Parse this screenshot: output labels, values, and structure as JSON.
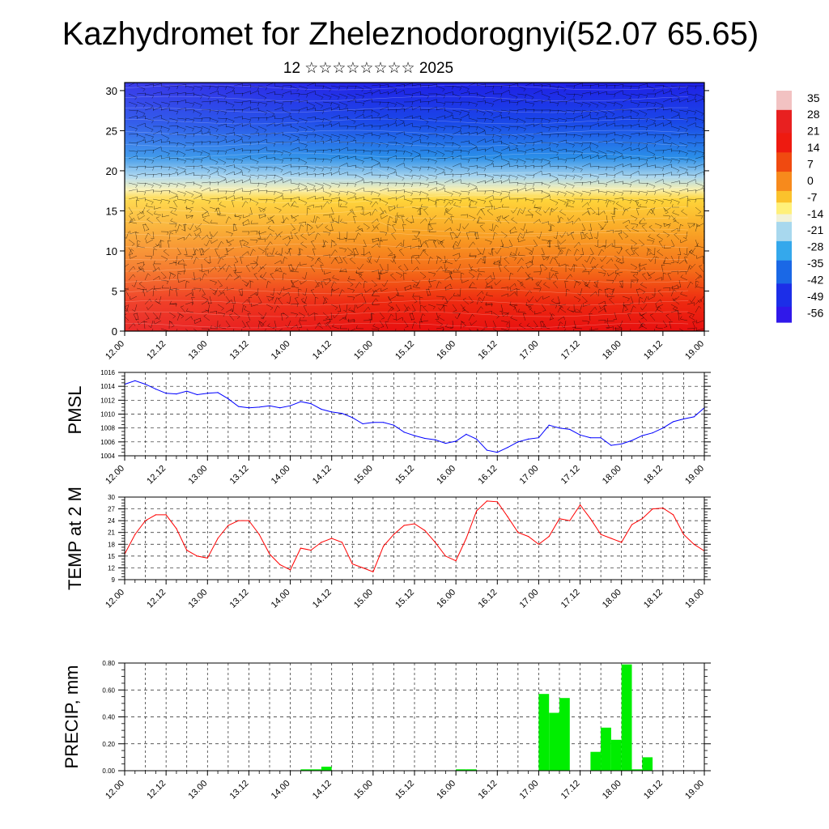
{
  "title": "Kazhydromet for Zheleznodorognyi(52.07 65.65)",
  "subtitle": "12 ☆☆☆☆☆☆☆☆ 2025",
  "time_labels": [
    "12.00",
    "12.12",
    "13.00",
    "13.12",
    "14.00",
    "14.12",
    "15.00",
    "15.12",
    "16.00",
    "16.12",
    "17.00",
    "17.12",
    "18.00",
    "18.12",
    "19.00"
  ],
  "chart_data": [
    {
      "type": "heatmap",
      "name": "cross-section",
      "ylim": [
        0,
        31
      ],
      "yticks": [
        0,
        5,
        10,
        15,
        20,
        25,
        30
      ],
      "colorbar": {
        "labels": [
          "35",
          "28",
          "21",
          "14",
          "7",
          "0",
          "-7",
          "-14",
          "-21",
          "-28",
          "-35",
          "-42",
          "-49",
          "-56"
        ],
        "stops": [
          {
            "v": 38,
            "color": "#f2c2c2"
          },
          {
            "v": 30,
            "color": "#e82020"
          },
          {
            "v": 20,
            "color": "#ee1a10"
          },
          {
            "v": 12,
            "color": "#f04a10"
          },
          {
            "v": 4,
            "color": "#f78a1c"
          },
          {
            "v": -4,
            "color": "#fbc22c"
          },
          {
            "v": -10,
            "color": "#fff07a"
          },
          {
            "v": -14,
            "color": "#f2f2d8"
          },
          {
            "v": -18,
            "color": "#a8d8ee"
          },
          {
            "v": -26,
            "color": "#34a8ec"
          },
          {
            "v": -34,
            "color": "#1a68e6"
          },
          {
            "v": -44,
            "color": "#1c2ee8"
          },
          {
            "v": -54,
            "color": "#3018ea"
          },
          {
            "v": -60,
            "color": "#8030e6"
          }
        ]
      }
    },
    {
      "type": "line",
      "name": "pmsl",
      "ylabel": "PMSL",
      "ylim": [
        1004,
        1016
      ],
      "yticks": [
        "1004",
        "1006",
        "1008",
        "1010",
        "1012",
        "1014",
        "1016"
      ],
      "color": "#0000ff",
      "x": [
        0,
        0.25,
        0.5,
        0.75,
        1,
        1.25,
        1.5,
        1.75,
        2,
        2.25,
        2.5,
        2.75,
        3,
        3.25,
        3.5,
        3.75,
        4,
        4.25,
        4.5,
        4.75,
        5,
        5.25,
        5.5,
        5.75,
        6,
        6.25,
        6.5,
        6.75,
        7,
        7.25,
        7.5,
        7.75,
        8,
        8.25,
        8.5,
        8.75,
        9,
        9.25,
        9.5,
        9.75,
        10,
        10.25,
        10.5,
        10.75,
        11,
        11.25,
        11.5,
        11.75,
        12,
        12.25,
        12.5,
        12.75,
        13,
        13.25,
        13.5,
        13.75,
        14
      ],
      "values": [
        1014.3,
        1014.8,
        1014.3,
        1013.6,
        1013.0,
        1012.9,
        1013.3,
        1012.8,
        1013.0,
        1013.1,
        1012.2,
        1011.1,
        1010.9,
        1011.0,
        1011.2,
        1010.9,
        1011.2,
        1011.8,
        1011.5,
        1010.7,
        1010.3,
        1010.1,
        1009.5,
        1008.6,
        1008.8,
        1008.8,
        1008.4,
        1007.4,
        1006.9,
        1006.5,
        1006.3,
        1005.8,
        1006.1,
        1007.1,
        1006.4,
        1004.8,
        1004.5,
        1005.2,
        1006.0,
        1006.4,
        1006.6,
        1008.4,
        1008.0,
        1007.8,
        1007.0,
        1006.6,
        1006.6,
        1005.5,
        1005.7,
        1006.2,
        1006.9,
        1007.3,
        1008.0,
        1008.9,
        1009.3,
        1009.6,
        1010.9
      ]
    },
    {
      "type": "line",
      "name": "temp",
      "ylabel": "TEMP at 2 M",
      "ylim": [
        9,
        30
      ],
      "yticks": [
        "9",
        "12",
        "15",
        "18",
        "21",
        "24",
        "27",
        "30"
      ],
      "color": "#ff0000",
      "x": [
        0,
        0.25,
        0.5,
        0.75,
        1,
        1.25,
        1.5,
        1.75,
        2,
        2.25,
        2.5,
        2.75,
        3,
        3.25,
        3.5,
        3.75,
        4,
        4.25,
        4.5,
        4.75,
        5,
        5.25,
        5.5,
        5.75,
        6,
        6.25,
        6.5,
        6.75,
        7,
        7.25,
        7.5,
        7.75,
        8,
        8.25,
        8.5,
        8.75,
        9,
        9.25,
        9.5,
        9.75,
        10,
        10.25,
        10.5,
        10.75,
        11,
        11.25,
        11.5,
        11.75,
        12,
        12.25,
        12.5,
        12.75,
        13,
        13.25,
        13.5,
        13.75,
        14
      ],
      "values": [
        15.5,
        20.5,
        24.0,
        25.5,
        25.5,
        22.0,
        16.5,
        15.0,
        14.5,
        19.5,
        22.8,
        24.0,
        24.0,
        20.5,
        15.5,
        12.8,
        11.5,
        17.0,
        16.5,
        18.5,
        19.5,
        18.5,
        13.0,
        12.0,
        11.0,
        17.5,
        20.5,
        22.8,
        23.2,
        21.5,
        18.5,
        15.0,
        13.8,
        19.5,
        26.5,
        29.0,
        28.8,
        25.0,
        21.0,
        20.0,
        18.0,
        20.0,
        24.5,
        24.0,
        28.0,
        24.5,
        20.5,
        19.5,
        18.5,
        23.0,
        24.5,
        27.0,
        27.2,
        25.5,
        20.5,
        18.0,
        16.3
      ]
    },
    {
      "type": "bar",
      "name": "precip",
      "ylabel": "PRECIP, mm",
      "ylim": [
        0,
        0.8
      ],
      "yticks": [
        "0.00",
        "0.20",
        "0.40",
        "0.60",
        "0.80"
      ],
      "color": "#00ee00",
      "step": 0.25,
      "bars": [
        {
          "x": 4.375,
          "value": 0.01
        },
        {
          "x": 4.625,
          "value": 0.01
        },
        {
          "x": 4.875,
          "value": 0.03
        },
        {
          "x": 8.125,
          "value": 0.01
        },
        {
          "x": 8.375,
          "value": 0.01
        },
        {
          "x": 10.125,
          "value": 0.57
        },
        {
          "x": 10.375,
          "value": 0.43
        },
        {
          "x": 10.625,
          "value": 0.54
        },
        {
          "x": 11.375,
          "value": 0.14
        },
        {
          "x": 11.625,
          "value": 0.32
        },
        {
          "x": 11.875,
          "value": 0.23
        },
        {
          "x": 12.125,
          "value": 0.79
        },
        {
          "x": 12.375,
          "value": 0.01
        },
        {
          "x": 12.625,
          "value": 0.1
        }
      ]
    }
  ]
}
